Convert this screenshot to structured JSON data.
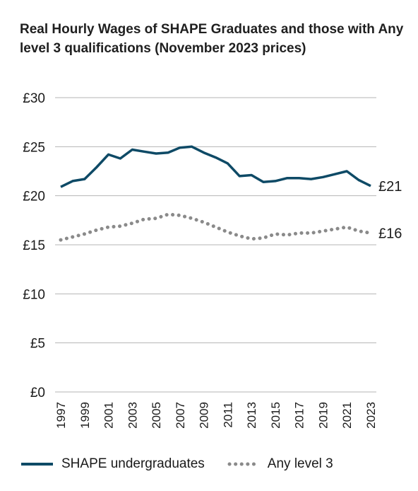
{
  "chart_data": {
    "type": "line",
    "title": "Real Hourly Wages of SHAPE Graduates and those with Any level 3 qualifications (November 2023 prices)",
    "xlabel": "",
    "ylabel": "",
    "ylim": [
      0,
      30
    ],
    "yticks": [
      "£0",
      "£5",
      "£10",
      "£15",
      "£20",
      "£25",
      "£30"
    ],
    "ytick_values": [
      0,
      5,
      10,
      15,
      20,
      25,
      30
    ],
    "x": [
      1997,
      1998,
      1999,
      2000,
      2001,
      2002,
      2003,
      2004,
      2005,
      2006,
      2007,
      2008,
      2009,
      2010,
      2011,
      2012,
      2013,
      2014,
      2015,
      2016,
      2017,
      2018,
      2019,
      2020,
      2021,
      2022,
      2023
    ],
    "xticks": [
      "1997",
      "1999",
      "2001",
      "2003",
      "2005",
      "2007",
      "2009",
      "2011",
      "2013",
      "2015",
      "2017",
      "2019",
      "2021",
      "2023"
    ],
    "grid": true,
    "legend_position": "bottom",
    "series": [
      {
        "name": "SHAPE undergraduates",
        "color": "#0e4a66",
        "style": "solid",
        "end_label": "£21",
        "values": [
          20.9,
          21.5,
          21.7,
          22.9,
          24.2,
          23.8,
          24.7,
          24.5,
          24.3,
          24.4,
          24.9,
          25.0,
          24.4,
          23.9,
          23.3,
          22.0,
          22.1,
          21.4,
          21.5,
          21.8,
          21.8,
          21.7,
          21.9,
          22.2,
          22.5,
          21.6,
          21.0
        ]
      },
      {
        "name": "Any level 3",
        "color": "#8a8a8a",
        "style": "dotted",
        "end_label": "£16",
        "values": [
          15.5,
          15.8,
          16.1,
          16.5,
          16.8,
          16.9,
          17.2,
          17.6,
          17.7,
          18.1,
          18.0,
          17.7,
          17.3,
          16.8,
          16.3,
          15.9,
          15.6,
          15.7,
          16.1,
          16.0,
          16.2,
          16.2,
          16.4,
          16.6,
          16.8,
          16.4,
          16.2
        ]
      }
    ]
  }
}
